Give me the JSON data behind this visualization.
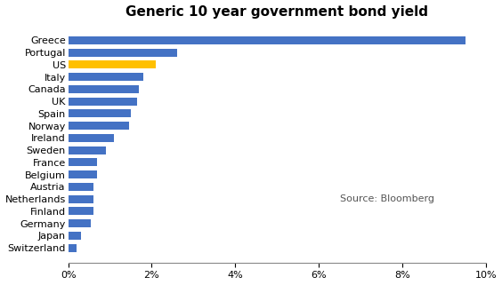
{
  "title": "Generic 10 year government bond yield",
  "countries": [
    "Greece",
    "Portugal",
    "US",
    "Italy",
    "Canada",
    "UK",
    "Spain",
    "Norway",
    "Ireland",
    "Sweden",
    "France",
    "Belgium",
    "Austria",
    "Netherlands",
    "Finland",
    "Germany",
    "Japan",
    "Switzerland"
  ],
  "values": [
    0.095,
    0.026,
    0.021,
    0.018,
    0.017,
    0.0165,
    0.015,
    0.0145,
    0.011,
    0.009,
    0.007,
    0.007,
    0.006,
    0.006,
    0.006,
    0.0055,
    0.003,
    0.002
  ],
  "colors": [
    "#4472C4",
    "#4472C4",
    "#FFC000",
    "#4472C4",
    "#4472C4",
    "#4472C4",
    "#4472C4",
    "#4472C4",
    "#4472C4",
    "#4472C4",
    "#4472C4",
    "#4472C4",
    "#4472C4",
    "#4472C4",
    "#4472C4",
    "#4472C4",
    "#4472C4",
    "#4472C4"
  ],
  "xlim": [
    0,
    0.1
  ],
  "source_text": "Source: Bloomberg",
  "background_color": "#ffffff",
  "title_fontsize": 11,
  "tick_fontsize": 8,
  "label_fontsize": 8
}
